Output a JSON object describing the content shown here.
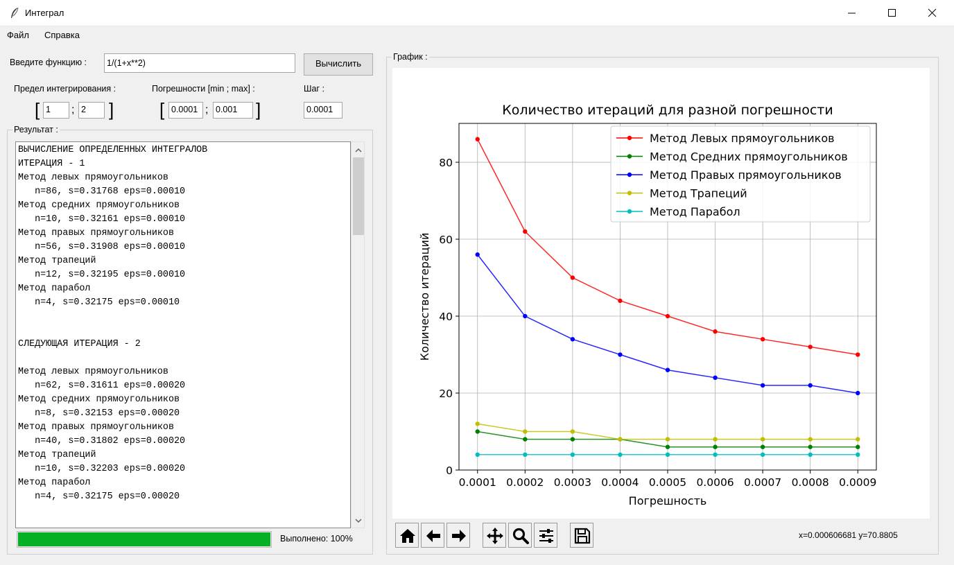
{
  "window": {
    "title": "Интеграл",
    "icon": "feather-icon"
  },
  "menu": {
    "items": [
      "Файл",
      "Справка"
    ]
  },
  "form": {
    "function_label": "Введите функцию :",
    "function_value": "1/(1+x**2)",
    "calc_button": "Вычислить",
    "limits_label": "Предел интегрирования :",
    "limit_min": "1",
    "limit_max": "2",
    "errors_label": "Погрешности [min ; max] :",
    "error_min": "0.0001",
    "error_max": "0.001",
    "step_label": "Шаг :",
    "step_value": "0.0001",
    "bracket_open": "[",
    "bracket_close": "]",
    "separator": ";"
  },
  "result": {
    "label": "Результат :",
    "lines": [
      "ВЫЧИСЛЕНИЕ ОПРЕДЕЛЕННЫХ ИНТЕГРАЛОВ",
      "ИТЕРАЦИЯ - 1",
      "Метод левых прямоугольников",
      "   n=86, s=0.31768 eps=0.00010",
      "Метод средних прямоугольников",
      "   n=10, s=0.32161 eps=0.00010",
      "Метод правых прямоугольников",
      "   n=56, s=0.31908 eps=0.00010",
      "Метод трапеций",
      "   n=12, s=0.32195 eps=0.00010",
      "Метод парабол",
      "   n=4, s=0.32175 eps=0.00010",
      "",
      "",
      "СЛЕДУЮЩАЯ ИТЕРАЦИЯ - 2",
      "",
      "Метод левых прямоугольников",
      "   n=62, s=0.31611 eps=0.00020",
      "Метод средних прямоугольников",
      "   n=8, s=0.32153 eps=0.00020",
      "Метод правых прямоугольников",
      "   n=40, s=0.31802 eps=0.00020",
      "Метод трапеций",
      "   n=10, s=0.32203 eps=0.00020",
      "Метод парабол",
      "   n=4, s=0.32175 eps=0.00020"
    ],
    "progress_fraction": 1.0,
    "progress_color": "#06b025",
    "status_text": "Выполнено: 100%"
  },
  "graph": {
    "label": "График :",
    "coords_text": "x=0.000606681  y=70.8805",
    "toolbar": [
      "home-icon",
      "back-arrow-icon",
      "forward-arrow-icon",
      "pan-icon",
      "zoom-icon",
      "configure-subplots-icon",
      "save-icon"
    ]
  },
  "chart_data": {
    "type": "line",
    "title": "Количество итераций для разной погрешности",
    "xlabel": "Погрешность",
    "ylabel": "Количество итераций",
    "x": [
      0.0001,
      0.0002,
      0.0003,
      0.0004,
      0.0005,
      0.0006,
      0.0007,
      0.0008,
      0.0009
    ],
    "x_tick_labels": [
      "0.0001",
      "0.0002",
      "0.0003",
      "0.0004",
      "0.0005",
      "0.0006",
      "0.0007",
      "0.0008",
      "0.0009"
    ],
    "y_ticks": [
      0,
      20,
      40,
      60,
      80
    ],
    "xlim": [
      6.1e-05,
      0.000939
    ],
    "ylim": [
      0,
      90.1
    ],
    "grid": true,
    "legend_position": "upper-right",
    "series": [
      {
        "name": "Метод Левых прямоугольников",
        "color": "#ff0000",
        "values": [
          86,
          62,
          50,
          44,
          40,
          36,
          34,
          32,
          30
        ]
      },
      {
        "name": "Метод Средних прямоугольников",
        "color": "#008000",
        "values": [
          10,
          8,
          8,
          8,
          6,
          6,
          6,
          6,
          6
        ]
      },
      {
        "name": "Метод Правых прямоугольников",
        "color": "#0000ff",
        "values": [
          56,
          40,
          34,
          30,
          26,
          24,
          22,
          22,
          20
        ]
      },
      {
        "name": "Метод Трапеций",
        "color": "#bfbf00",
        "values": [
          12,
          10,
          10,
          8,
          8,
          8,
          8,
          8,
          8
        ]
      },
      {
        "name": "Метод Парабол",
        "color": "#00bfbf",
        "values": [
          4,
          4,
          4,
          4,
          4,
          4,
          4,
          4,
          4
        ]
      }
    ]
  }
}
